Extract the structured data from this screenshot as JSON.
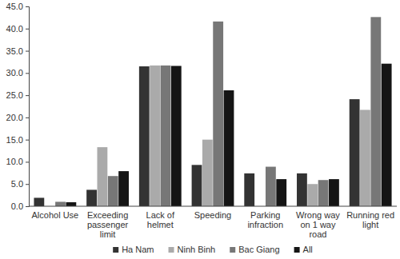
{
  "chart_data": {
    "type": "bar",
    "categories": [
      "Alcohol Use",
      "Exceeding passenger limit",
      "Lack of helmet",
      "Speeding",
      "Parking infraction",
      "Wrong way on 1 way road",
      "Running red light"
    ],
    "series": [
      {
        "name": "Ha Nam",
        "color": "#333333",
        "values": [
          1.9,
          3.7,
          31.5,
          9.3,
          7.4,
          7.4,
          24.1
        ]
      },
      {
        "name": "Ninh Binh",
        "color": "#aaaaaa",
        "values": [
          0,
          13.3,
          31.7,
          15.0,
          0,
          5.0,
          21.7
        ]
      },
      {
        "name": "Bac Giang",
        "color": "#777777",
        "values": [
          1.0,
          6.8,
          31.7,
          41.6,
          8.9,
          5.9,
          42.6
        ]
      },
      {
        "name": "All",
        "color": "#151515",
        "values": [
          0.9,
          7.9,
          31.6,
          26.1,
          6.1,
          6.1,
          32.1
        ]
      }
    ],
    "ylim": [
      0,
      45
    ],
    "yticks": [
      {
        "value": 0,
        "label": "0.0"
      },
      {
        "value": 5,
        "label": "5.0"
      },
      {
        "value": 10,
        "label": "10.0"
      },
      {
        "value": 15,
        "label": "15.0"
      },
      {
        "value": 20,
        "label": "20.0"
      },
      {
        "value": 25,
        "label": "25.0"
      },
      {
        "value": 30,
        "label": "30.0"
      },
      {
        "value": 35,
        "label": "35.0"
      },
      {
        "value": 40,
        "label": "40.0"
      },
      {
        "value": 45,
        "label": "45.0"
      }
    ],
    "grid": false,
    "legend": "bottom"
  }
}
